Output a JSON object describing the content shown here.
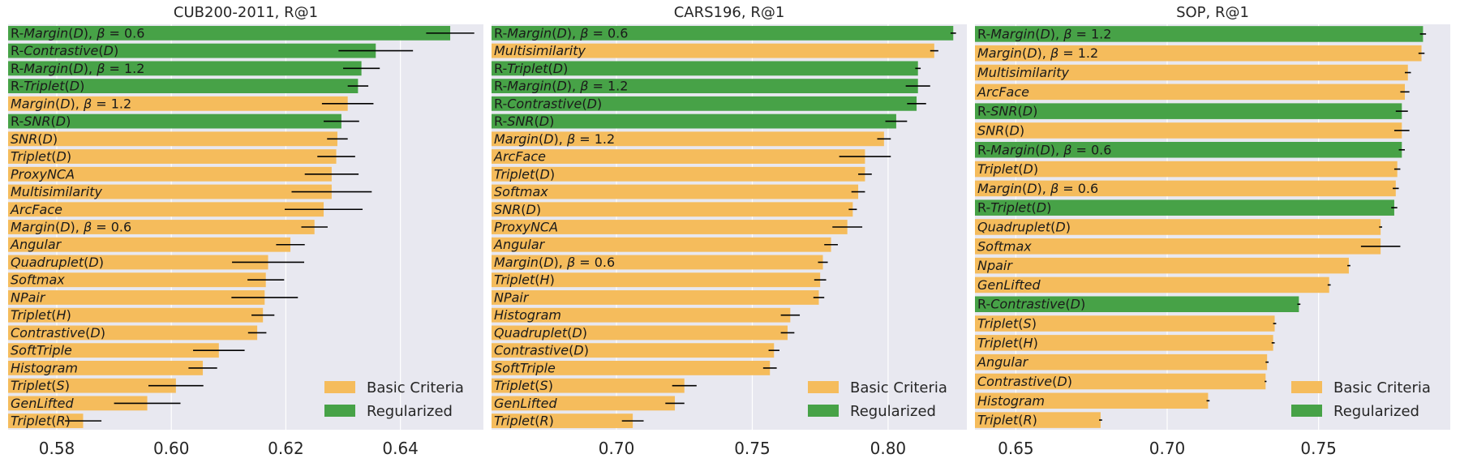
{
  "legend": {
    "basic": "Basic Criteria",
    "regularized": "Regularized"
  },
  "colors": {
    "basic": "#f5bc5c",
    "regularized": "#47a247",
    "bg": "#e8e8f0",
    "grid": "#ffffff",
    "err": "#000000"
  },
  "chart_data": [
    {
      "type": "bar",
      "orientation": "horizontal",
      "title": "CUB200-2011, R@1",
      "xlim": [
        0.5715,
        0.6545
      ],
      "xticks": [
        0.58,
        0.6,
        0.62,
        0.64
      ],
      "xtick_labels": [
        "0.58",
        "0.60",
        "0.62",
        "0.64"
      ],
      "bars": [
        {
          "label": "R-Margin(D), β = 0.6",
          "value": 0.6487,
          "err": 0.0042,
          "group": "regularized"
        },
        {
          "label": "R-Contrastive(D)",
          "value": 0.6357,
          "err": 0.0065,
          "group": "regularized"
        },
        {
          "label": "R-Margin(D), β = 1.2",
          "value": 0.6332,
          "err": 0.0032,
          "group": "regularized"
        },
        {
          "label": "R-Triplet(D)",
          "value": 0.6326,
          "err": 0.0018,
          "group": "regularized"
        },
        {
          "label": "Margin(D), β = 1.2",
          "value": 0.6308,
          "err": 0.0045,
          "group": "basic"
        },
        {
          "label": "R-SNR(D)",
          "value": 0.6297,
          "err": 0.0031,
          "group": "regularized"
        },
        {
          "label": "SNR(D)",
          "value": 0.629,
          "err": 0.0018,
          "group": "basic"
        },
        {
          "label": "Triplet(D)",
          "value": 0.6288,
          "err": 0.0033,
          "group": "basic"
        },
        {
          "label": "ProxyNCA",
          "value": 0.628,
          "err": 0.0047,
          "group": "basic"
        },
        {
          "label": "Multisimilarity",
          "value": 0.628,
          "err": 0.007,
          "group": "basic"
        },
        {
          "label": "ArcFace",
          "value": 0.6266,
          "err": 0.0068,
          "group": "basic"
        },
        {
          "label": "Margin(D), β = 0.6",
          "value": 0.625,
          "err": 0.0023,
          "group": "basic"
        },
        {
          "label": "Angular",
          "value": 0.6208,
          "err": 0.0025,
          "group": "basic"
        },
        {
          "label": "Quadruplet(D)",
          "value": 0.6169,
          "err": 0.0063,
          "group": "basic"
        },
        {
          "label": "Softmax",
          "value": 0.6165,
          "err": 0.0032,
          "group": "basic"
        },
        {
          "label": "NPair",
          "value": 0.6163,
          "err": 0.0058,
          "group": "basic"
        },
        {
          "label": "Triplet(H)",
          "value": 0.616,
          "err": 0.002,
          "group": "basic"
        },
        {
          "label": "Contrastive(D)",
          "value": 0.615,
          "err": 0.0016,
          "group": "basic"
        },
        {
          "label": "SoftTriple",
          "value": 0.6083,
          "err": 0.0045,
          "group": "basic"
        },
        {
          "label": "Histogram",
          "value": 0.6055,
          "err": 0.0025,
          "group": "basic"
        },
        {
          "label": "Triplet(S)",
          "value": 0.6008,
          "err": 0.0048,
          "group": "basic"
        },
        {
          "label": "GenLifted",
          "value": 0.5958,
          "err": 0.0058,
          "group": "basic"
        },
        {
          "label": "Triplet(R)",
          "value": 0.5846,
          "err": 0.0032,
          "group": "basic"
        }
      ]
    },
    {
      "type": "bar",
      "orientation": "horizontal",
      "title": "CARS196, R@1",
      "xlim": [
        0.654,
        0.829
      ],
      "xticks": [
        0.7,
        0.75,
        0.8
      ],
      "xtick_labels": [
        "0.70",
        "0.75",
        "0.80"
      ],
      "bars": [
        {
          "label": "R-Margin(D), β = 0.6",
          "value": 0.824,
          "err": 0.001,
          "group": "regularized"
        },
        {
          "label": "Multisimilarity",
          "value": 0.817,
          "err": 0.0015,
          "group": "basic"
        },
        {
          "label": "R-Triplet(D)",
          "value": 0.811,
          "err": 0.001,
          "group": "regularized"
        },
        {
          "label": "R-Margin(D), β = 1.2",
          "value": 0.811,
          "err": 0.0045,
          "group": "regularized"
        },
        {
          "label": "R-Contrastive(D)",
          "value": 0.8105,
          "err": 0.0035,
          "group": "regularized"
        },
        {
          "label": "R-SNR(D)",
          "value": 0.803,
          "err": 0.004,
          "group": "regularized"
        },
        {
          "label": "Margin(D), β = 1.2",
          "value": 0.7985,
          "err": 0.0025,
          "group": "basic"
        },
        {
          "label": "ArcFace",
          "value": 0.7915,
          "err": 0.0095,
          "group": "basic"
        },
        {
          "label": "Triplet(D)",
          "value": 0.7915,
          "err": 0.0025,
          "group": "basic"
        },
        {
          "label": "Softmax",
          "value": 0.789,
          "err": 0.0025,
          "group": "basic"
        },
        {
          "label": "SNR(D)",
          "value": 0.787,
          "err": 0.0015,
          "group": "basic"
        },
        {
          "label": "ProxyNCA",
          "value": 0.785,
          "err": 0.0055,
          "group": "basic"
        },
        {
          "label": "Angular",
          "value": 0.779,
          "err": 0.0025,
          "group": "basic"
        },
        {
          "label": "Margin(D), β = 0.6",
          "value": 0.776,
          "err": 0.0018,
          "group": "basic"
        },
        {
          "label": "Triplet(H)",
          "value": 0.775,
          "err": 0.0022,
          "group": "basic"
        },
        {
          "label": "NPair",
          "value": 0.7745,
          "err": 0.002,
          "group": "basic"
        },
        {
          "label": "Histogram",
          "value": 0.764,
          "err": 0.0035,
          "group": "basic"
        },
        {
          "label": "Quadruplet(D)",
          "value": 0.763,
          "err": 0.0025,
          "group": "basic"
        },
        {
          "label": "Contrastive(D)",
          "value": 0.758,
          "err": 0.002,
          "group": "basic"
        },
        {
          "label": "SoftTriple",
          "value": 0.7565,
          "err": 0.0025,
          "group": "basic"
        },
        {
          "label": "Triplet(S)",
          "value": 0.725,
          "err": 0.0045,
          "group": "basic"
        },
        {
          "label": "GenLifted",
          "value": 0.7215,
          "err": 0.0035,
          "group": "basic"
        },
        {
          "label": "Triplet(R)",
          "value": 0.706,
          "err": 0.004,
          "group": "basic"
        }
      ]
    },
    {
      "type": "bar",
      "orientation": "horizontal",
      "title": "SOP, R@1",
      "xlim": [
        0.6365,
        0.7935
      ],
      "xticks": [
        0.65,
        0.7,
        0.75
      ],
      "xtick_labels": [
        "0.65",
        "0.70",
        "0.75"
      ],
      "bars": [
        {
          "label": "R-Margin(D), β = 1.2",
          "value": 0.7845,
          "err": 0.001,
          "group": "regularized"
        },
        {
          "label": "Margin(D), β = 1.2",
          "value": 0.784,
          "err": 0.001,
          "group": "basic"
        },
        {
          "label": "Multisimilarity",
          "value": 0.7795,
          "err": 0.001,
          "group": "basic"
        },
        {
          "label": "ArcFace",
          "value": 0.7785,
          "err": 0.0015,
          "group": "basic"
        },
        {
          "label": "R-SNR(D)",
          "value": 0.7775,
          "err": 0.002,
          "group": "regularized"
        },
        {
          "label": "SNR(D)",
          "value": 0.7775,
          "err": 0.0025,
          "group": "basic"
        },
        {
          "label": "R-Margin(D), β = 0.6",
          "value": 0.7775,
          "err": 0.001,
          "group": "regularized"
        },
        {
          "label": "Triplet(D)",
          "value": 0.776,
          "err": 0.001,
          "group": "basic"
        },
        {
          "label": "Margin(D), β = 0.6",
          "value": 0.7755,
          "err": 0.001,
          "group": "basic"
        },
        {
          "label": "R-Triplet(D)",
          "value": 0.775,
          "err": 0.001,
          "group": "regularized"
        },
        {
          "label": "Quadruplet(D)",
          "value": 0.7705,
          "err": 0.0005,
          "group": "basic"
        },
        {
          "label": "Softmax",
          "value": 0.7705,
          "err": 0.0065,
          "group": "basic"
        },
        {
          "label": "Npair",
          "value": 0.76,
          "err": 0.0005,
          "group": "basic"
        },
        {
          "label": "GenLifted",
          "value": 0.7535,
          "err": 0.0005,
          "group": "basic"
        },
        {
          "label": "R-Contrastive(D)",
          "value": 0.7435,
          "err": 0.0005,
          "group": "regularized"
        },
        {
          "label": "Triplet(S)",
          "value": 0.7355,
          "err": 0.0005,
          "group": "basic"
        },
        {
          "label": "Triplet(H)",
          "value": 0.735,
          "err": 0.0005,
          "group": "basic"
        },
        {
          "label": "Angular",
          "value": 0.733,
          "err": 0.0005,
          "group": "basic"
        },
        {
          "label": "Contrastive(D)",
          "value": 0.7325,
          "err": 0.0003,
          "group": "basic"
        },
        {
          "label": "Histogram",
          "value": 0.7135,
          "err": 0.0005,
          "group": "basic"
        },
        {
          "label": "Triplet(R)",
          "value": 0.678,
          "err": 0.0005,
          "group": "basic"
        }
      ]
    }
  ]
}
